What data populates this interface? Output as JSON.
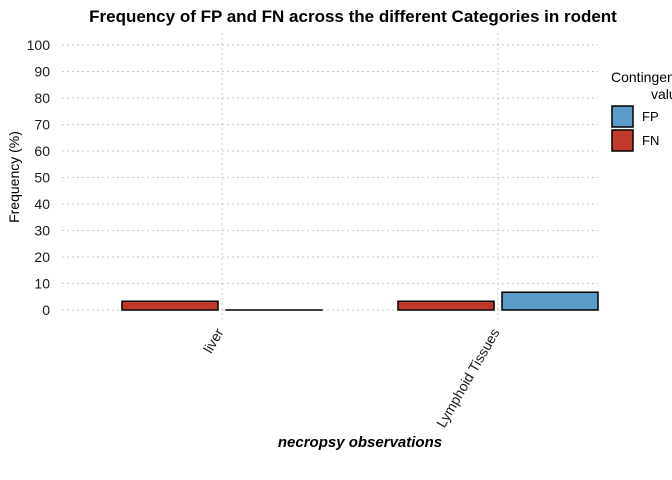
{
  "chart_data": {
    "type": "bar",
    "title": "Frequency of FP and FN across the different Categories in rodent",
    "xlabel": "necropsy observations",
    "ylabel": "Frequency (%)",
    "ylim": [
      0,
      100
    ],
    "yticks": [
      0,
      10,
      20,
      30,
      40,
      50,
      60,
      70,
      80,
      90,
      100
    ],
    "categories": [
      "liver",
      "Lymphoid Tissues"
    ],
    "series": [
      {
        "name": "FN",
        "color": "#c0392b",
        "values": [
          3.3,
          3.3
        ]
      },
      {
        "name": "FP",
        "color": "#5b9bc7",
        "values": [
          0.0,
          6.7
        ]
      }
    ],
    "legend": {
      "title_lines": [
        "Contingency",
        "value"
      ],
      "position": "right",
      "entries": [
        {
          "label": "FP",
          "color": "#5b9bc7"
        },
        {
          "label": "FN",
          "color": "#c0392b"
        }
      ]
    },
    "grid": true
  }
}
